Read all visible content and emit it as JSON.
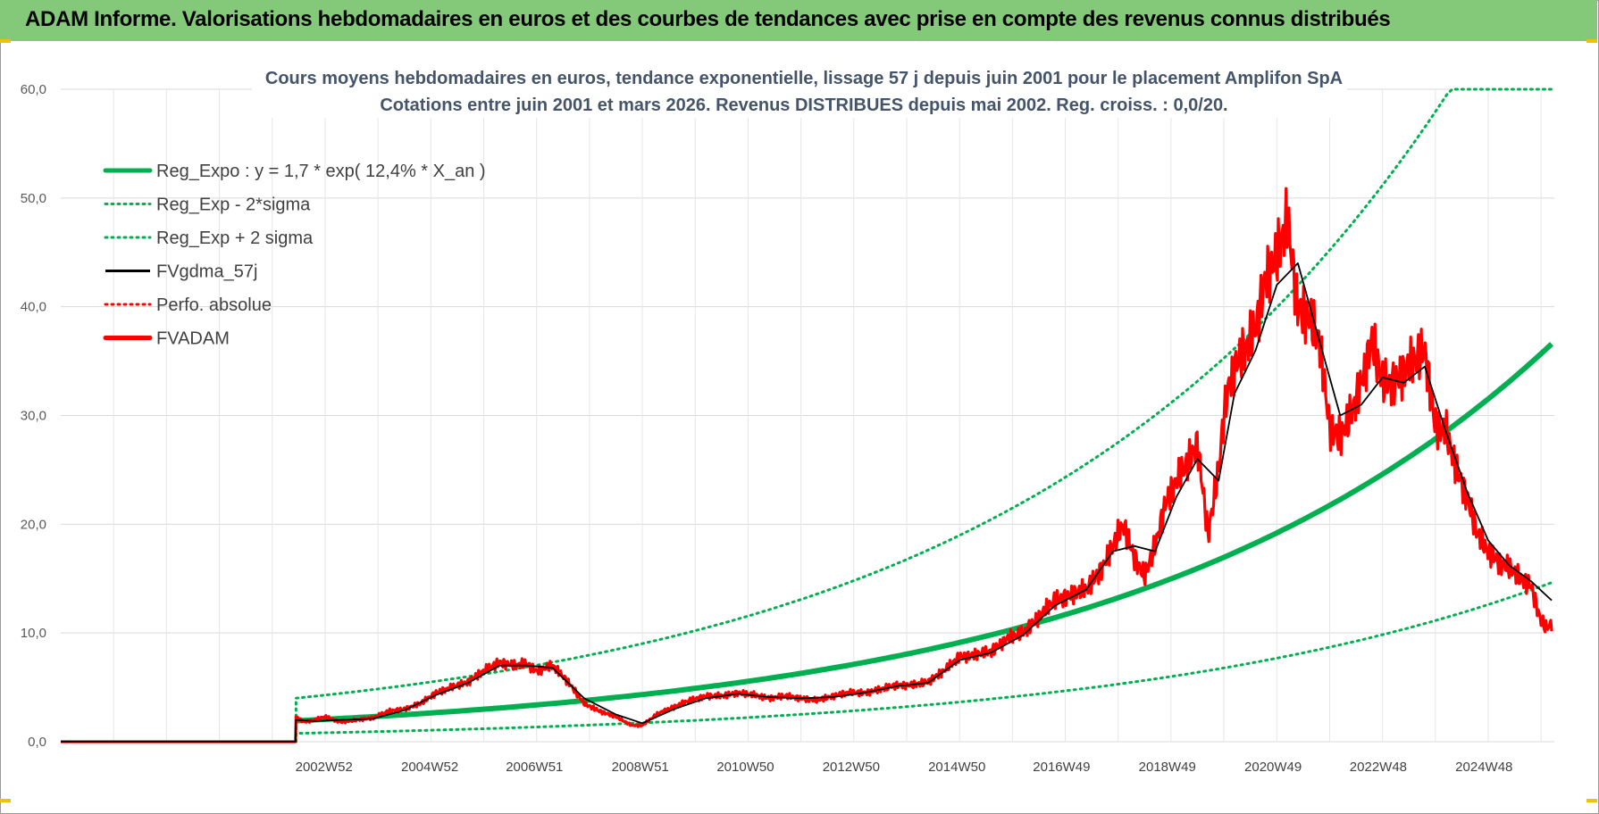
{
  "banner": {
    "title": "ADAM Informe. Valorisations hebdomadaires en euros et des courbes de tendances avec prise en compte des revenus connus distribués",
    "background": "#84c97a"
  },
  "chart_data": {
    "type": "line",
    "title": "Cours moyens hebdomadaires en euros, tendance exponentielle, lissage 57 j depuis juin 2001 pour le placement Amplifon SpA",
    "subtitle": "Cotations entre juin 2001 et mars 2026. Revenus DISTRIBUES depuis mai 2002. Reg. croiss. : 0,0/20.",
    "xlabel": "",
    "ylabel": "",
    "ylim": [
      0,
      60
    ],
    "xlim": [
      1998.0,
      2026.25
    ],
    "y_ticks": [
      "0,0",
      "10,0",
      "20,0",
      "30,0",
      "40,0",
      "50,0",
      "60,0"
    ],
    "x_tick_labels": [
      "2002W52",
      "2004W52",
      "2006W51",
      "2008W51",
      "2010W50",
      "2012W50",
      "2014W50",
      "2016W49",
      "2018W49",
      "2020W49",
      "2022W48",
      "2024W48"
    ],
    "x_tick_values": [
      2002.98,
      2004.98,
      2006.96,
      2008.96,
      2010.95,
      2012.95,
      2014.95,
      2016.93,
      2018.93,
      2020.93,
      2022.92,
      2024.92
    ],
    "grid": true,
    "legend_position": "top-left",
    "start_year": 2002.45,
    "regression": {
      "a": 1.7,
      "rate": 0.124,
      "base_year": 2001.45
    },
    "legend": [
      {
        "label": "Reg_Expo : y = 1,7 * exp( 12,4% *  X_an )",
        "color": "#00b050",
        "style": "solid-thick"
      },
      {
        "label": "Reg_Exp - 2*sigma",
        "color": "#00b050",
        "style": "dotted"
      },
      {
        "label": "Reg_Exp + 2 sigma",
        "color": "#00b050",
        "style": "dotted"
      },
      {
        "label": "FVgdma_57j",
        "color": "#000000",
        "style": "solid"
      },
      {
        "label": "Perfo. absolue",
        "color": "#ff0000",
        "style": "dotted"
      },
      {
        "label": "FVADAM",
        "color": "#ff0000",
        "style": "solid-thick"
      }
    ],
    "series": [
      {
        "name": "FVADAM",
        "color": "#ff0000",
        "x": [
          1998.0,
          2002.44,
          2002.45,
          2002.6,
          2002.8,
          2003.0,
          2003.3,
          2003.6,
          2003.9,
          2004.2,
          2004.5,
          2004.8,
          2005.1,
          2005.4,
          2005.7,
          2006.0,
          2006.3,
          2006.6,
          2006.8,
          2007.0,
          2007.3,
          2007.6,
          2007.9,
          2008.2,
          2008.5,
          2008.8,
          2009.0,
          2009.3,
          2009.6,
          2009.9,
          2010.2,
          2010.5,
          2010.8,
          2011.1,
          2011.4,
          2011.7,
          2012.0,
          2012.3,
          2012.6,
          2012.9,
          2013.2,
          2013.5,
          2013.8,
          2014.1,
          2014.4,
          2014.7,
          2015.0,
          2015.3,
          2015.6,
          2015.9,
          2016.2,
          2016.5,
          2016.8,
          2017.1,
          2017.4,
          2017.7,
          2017.9,
          2018.1,
          2018.3,
          2018.5,
          2018.7,
          2018.9,
          2019.1,
          2019.3,
          2019.5,
          2019.7,
          2019.9,
          2020.0,
          2020.1,
          2020.2,
          2020.4,
          2020.6,
          2020.8,
          2021.0,
          2021.2,
          2021.4,
          2021.6,
          2021.8,
          2022.0,
          2022.2,
          2022.4,
          2022.6,
          2022.8,
          2023.0,
          2023.2,
          2023.4,
          2023.6,
          2023.8,
          2024.0,
          2024.2,
          2024.4,
          2024.6,
          2024.8,
          2025.0,
          2025.2,
          2025.4,
          2025.6,
          2025.8,
          2026.0,
          2026.1,
          2026.2
        ],
        "values": [
          0,
          0,
          2.3,
          1.8,
          2.0,
          2.3,
          1.8,
          2.0,
          2.2,
          2.8,
          3.0,
          3.5,
          4.5,
          5.0,
          5.5,
          6.5,
          7.3,
          7.0,
          7.2,
          6.5,
          7.0,
          5.5,
          3.5,
          2.8,
          2.3,
          1.5,
          1.5,
          2.6,
          3.2,
          3.8,
          4.2,
          4.2,
          4.5,
          4.3,
          4.0,
          4.2,
          4.0,
          3.8,
          4.2,
          4.5,
          4.5,
          4.8,
          5.2,
          5.2,
          5.5,
          6.5,
          7.8,
          8.0,
          8.3,
          9.5,
          10.0,
          11.5,
          13.0,
          13.5,
          14.0,
          16.0,
          18.0,
          20.0,
          17.0,
          15.2,
          18.0,
          22.0,
          24.0,
          25.5,
          27.5,
          19.0,
          25.0,
          30.0,
          33.0,
          34.5,
          36.0,
          38.0,
          43.0,
          44.5,
          48.0,
          40.0,
          39.0,
          37.0,
          29.0,
          28.0,
          30.0,
          33.0,
          37.0,
          33.0,
          33.0,
          34.0,
          35.0,
          36.0,
          29.0,
          28.5,
          25.0,
          22.5,
          19.0,
          17.5,
          16.5,
          16.0,
          15.0,
          14.5,
          11.0,
          10.5,
          10.8
        ]
      },
      {
        "name": "FVgdma_57j",
        "color": "#000000",
        "x": [
          1998.0,
          2002.44,
          2002.45,
          2002.8,
          2003.3,
          2003.9,
          2004.5,
          2005.1,
          2005.7,
          2006.3,
          2006.8,
          2007.3,
          2007.9,
          2008.5,
          2009.0,
          2009.6,
          2010.2,
          2010.8,
          2011.4,
          2012.0,
          2012.6,
          2013.2,
          2013.8,
          2014.4,
          2015.0,
          2015.6,
          2016.2,
          2016.8,
          2017.4,
          2017.9,
          2018.3,
          2018.7,
          2019.1,
          2019.5,
          2019.9,
          2020.2,
          2020.6,
          2021.0,
          2021.4,
          2021.8,
          2022.2,
          2022.6,
          2023.0,
          2023.4,
          2023.8,
          2024.2,
          2024.6,
          2025.0,
          2025.4,
          2025.8,
          2026.2
        ],
        "values": [
          0,
          0,
          2.0,
          1.9,
          2.0,
          2.1,
          2.9,
          4.3,
          5.4,
          7.0,
          7.0,
          6.8,
          4.0,
          2.5,
          1.7,
          3.0,
          4.0,
          4.4,
          4.1,
          4.0,
          4.1,
          4.5,
          5.1,
          5.4,
          7.5,
          8.2,
          9.8,
          12.5,
          14.0,
          17.5,
          18.0,
          17.5,
          22.5,
          26.0,
          24.0,
          32.0,
          36.0,
          42.0,
          44.0,
          37.0,
          30.0,
          31.0,
          33.5,
          33.0,
          34.5,
          28.5,
          23.0,
          18.5,
          16.2,
          14.8,
          13.0
        ]
      },
      {
        "name": "Reg_Expo : y = 1,7 * exp( 12,4% *  X_an )",
        "color": "#00b050",
        "x": [
          2002.45,
          2026.2
        ],
        "values": [
          1.92,
          36.3
        ]
      },
      {
        "name": "Reg_Exp - 2*sigma",
        "color": "#00b050",
        "x": [
          2002.45,
          2026.2
        ],
        "values": [
          0.6,
          14.5
        ]
      },
      {
        "name": "Reg_Exp + 2 sigma",
        "color": "#00b050",
        "x": [
          2002.45,
          2022.65,
          2026.2
        ],
        "values": [
          4.0,
          60.0,
          60.0
        ]
      }
    ]
  }
}
